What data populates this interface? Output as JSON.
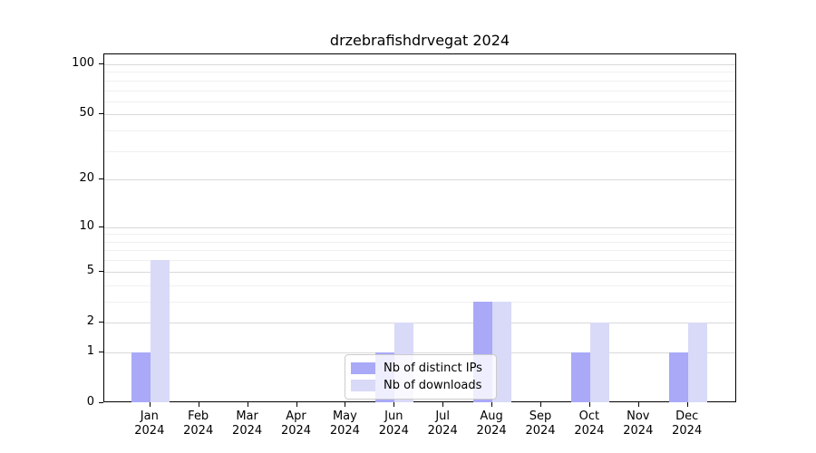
{
  "title": "drzebrafishdrvegat 2024",
  "chart_data": {
    "type": "bar",
    "title": "drzebrafishdrvegat 2024",
    "categories": [
      "Jan 2024",
      "Feb 2024",
      "Mar 2024",
      "Apr 2024",
      "May 2024",
      "Jun 2024",
      "Jul 2024",
      "Aug 2024",
      "Sep 2024",
      "Oct 2024",
      "Nov 2024",
      "Dec 2024"
    ],
    "series": [
      {
        "name": "Nb of distinct IPs",
        "color": "#a9a9f8",
        "values": [
          1,
          0,
          0,
          0,
          0,
          1,
          0,
          3,
          0,
          1,
          0,
          1
        ]
      },
      {
        "name": "Nb of downloads",
        "color": "#d9d9f8",
        "values": [
          6,
          0,
          0,
          0,
          0,
          2,
          0,
          3,
          0,
          2,
          0,
          2
        ]
      }
    ],
    "xlabel": "",
    "ylabel": "",
    "yscale": "log1p",
    "y_major_ticks": [
      0,
      1,
      2,
      5,
      10,
      20,
      50,
      100
    ],
    "y_minor_ticks": [
      3,
      4,
      6,
      7,
      8,
      9,
      30,
      40,
      60,
      70,
      80,
      90
    ],
    "ylim": [
      0,
      112
    ],
    "grid": true,
    "legend_position": "lower center"
  },
  "colors": {
    "distinct_ips": "#a9a9f8",
    "downloads": "#d9d9f8",
    "major_grid": "#d9d9d9",
    "minor_grid": "#f0f0f0",
    "spine": "#000000"
  }
}
